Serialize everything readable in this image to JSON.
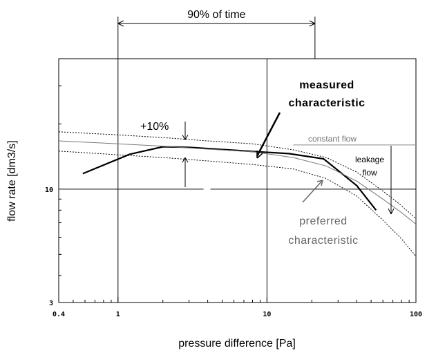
{
  "chart_data": {
    "type": "line",
    "xlabel": "pressure difference [Pa]",
    "ylabel": "flow rate [dm3/s]",
    "x_scale": "log",
    "y_scale": "log",
    "xlim": [
      0.4,
      100
    ],
    "ylim": [
      3,
      40
    ],
    "x_tick_labels": [
      {
        "value": 0.4,
        "label": "0.4"
      },
      {
        "value": 1,
        "label": "1"
      },
      {
        "value": 10,
        "label": "10"
      },
      {
        "value": 100,
        "label": "100"
      }
    ],
    "y_tick_labels": [
      {
        "value": 3,
        "label": "3"
      },
      {
        "value": 10,
        "label": "10"
      }
    ],
    "grid": false,
    "series": [
      {
        "id": "measured",
        "style": "thick-black",
        "points": [
          [
            0.58,
            11.8
          ],
          [
            1.2,
            14.5
          ],
          [
            2.0,
            15.7
          ],
          [
            3.0,
            15.6
          ],
          [
            8.5,
            14.9
          ],
          [
            14,
            14.6
          ],
          [
            24,
            13.8
          ],
          [
            40,
            10.4
          ],
          [
            54,
            8.0
          ]
        ]
      },
      {
        "id": "preferred",
        "style": "thin-gray",
        "points": [
          [
            0.4,
            16.7
          ],
          [
            1,
            16.2
          ],
          [
            2,
            15.8
          ],
          [
            4,
            15.3
          ],
          [
            8,
            14.9
          ],
          [
            15,
            14.0
          ],
          [
            25,
            12.8
          ],
          [
            40,
            10.9
          ],
          [
            60,
            9.0
          ],
          [
            80,
            7.8
          ],
          [
            100,
            6.9
          ]
        ]
      },
      {
        "id": "upper-limit",
        "style": "dotted-black",
        "points": [
          [
            0.4,
            18.4
          ],
          [
            1,
            17.8
          ],
          [
            2,
            17.3
          ],
          [
            4,
            16.7
          ],
          [
            8,
            16.2
          ],
          [
            15,
            15.2
          ],
          [
            25,
            14.0
          ],
          [
            40,
            12.0
          ],
          [
            60,
            9.8
          ],
          [
            80,
            8.4
          ],
          [
            100,
            7.3
          ]
        ]
      },
      {
        "id": "lower-limit",
        "style": "dotted-black",
        "points": [
          [
            0.4,
            15.0
          ],
          [
            1,
            14.4
          ],
          [
            2,
            14.0
          ],
          [
            4,
            13.5
          ],
          [
            8,
            13.0
          ],
          [
            15,
            12.4
          ],
          [
            25,
            11.2
          ],
          [
            40,
            9.3
          ],
          [
            60,
            7.2
          ],
          [
            80,
            5.9
          ],
          [
            100,
            4.9
          ]
        ]
      }
    ],
    "reference_lines": [
      {
        "id": "constant-flow",
        "axis": "y",
        "value": 16.0,
        "x_from": 15,
        "x_to": 100,
        "color": "#888888"
      },
      {
        "id": "y-ten-line",
        "axis": "y",
        "value": 10,
        "color": "#000000"
      },
      {
        "id": "x-one-line",
        "axis": "x",
        "value": 1,
        "color": "#000000"
      },
      {
        "id": "x-ten-line",
        "axis": "x",
        "value": 10,
        "color": "#000000"
      }
    ],
    "annotations": {
      "time_span": {
        "label": "90% of time",
        "x_from": 1,
        "x_to": 21
      },
      "tolerance": {
        "label": "+10%",
        "x": 3,
        "y_upper": 16.9,
        "y_lower": 14.0
      },
      "measured_label": {
        "line1": "measured",
        "line2": "characteristic"
      },
      "preferred_label": {
        "line1": "preferred",
        "line2": "characteristic"
      },
      "constant_flow_label": "constant flow",
      "leakage_label": {
        "line1": "leakage",
        "line2": "flow"
      }
    }
  }
}
